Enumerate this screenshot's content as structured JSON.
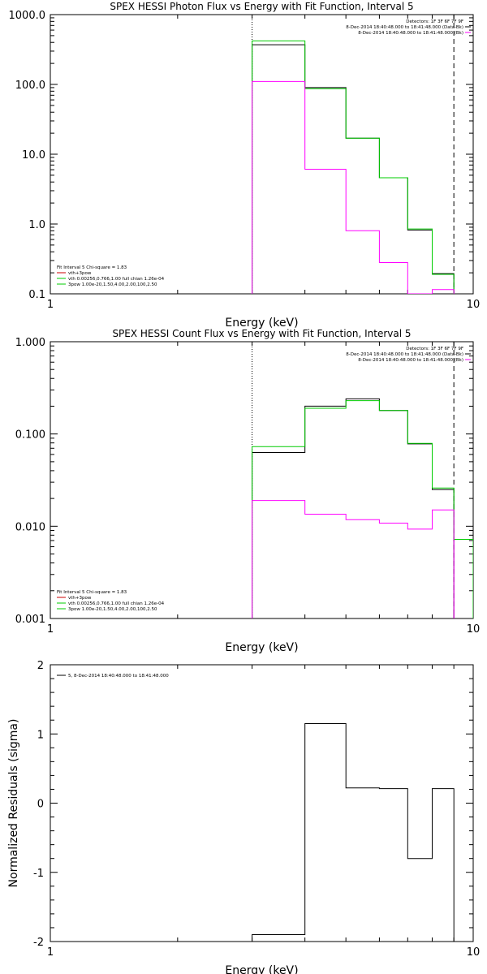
{
  "colors": {
    "data": "#000000",
    "fit": "#00cc00",
    "background": "#ff00ff"
  },
  "chart_data": [
    {
      "type": "line",
      "title": "SPEX HESSI Photon Flux vs Energy with Fit Function, Interval 5",
      "xlabel": "Energy (keV)",
      "ylabel": "",
      "xscale": "log",
      "yscale": "log",
      "xlim": [
        1,
        10
      ],
      "ylim": [
        0.1,
        1000.0
      ],
      "xticks": [
        "1",
        "10"
      ],
      "yticks": [
        "0.1",
        "1.0",
        "10.0",
        "100.0",
        "1000.0"
      ],
      "edges": [
        3.0,
        4.0,
        5.0,
        6.0,
        7.0,
        8.0,
        9.0
      ],
      "series": [
        {
          "role": "data",
          "values": [
            370,
            90,
            17.0,
            4.6,
            0.82,
            0.195
          ]
        },
        {
          "role": "fit",
          "values": [
            420,
            87,
            17.0,
            4.6,
            0.85,
            0.19
          ]
        },
        {
          "role": "background",
          "values": [
            110,
            6.1,
            0.8,
            0.28,
            0.1,
            0.115
          ]
        }
      ],
      "vlines": [
        {
          "x": 3.0,
          "style": "dotted"
        },
        {
          "x": 9.0,
          "style": "dashed"
        }
      ],
      "legend_right": [
        "Detectors: 1F 3F 6F 7F 9F",
        "8-Dec-2014 18:40:48.000 to 18:41:48.000 (Data-Bk)",
        "8-Dec-2014 18:40:48.000 to 18:41:48.000 (Bk)"
      ],
      "legend_left": [
        "Fit Interval 5   Chi-square = 1.83",
        "vth+3pow",
        "vth 0.00256,0.766,1.00  full chian 1.26e-04",
        "3pow 1.00e-20,1.50,4.00,2.00,100,2.50"
      ]
    },
    {
      "type": "line",
      "title": "SPEX HESSI Count Flux vs Energy with Fit Function, Interval 5",
      "xlabel": "Energy (keV)",
      "ylabel": "",
      "xscale": "log",
      "yscale": "log",
      "xlim": [
        1,
        10
      ],
      "ylim": [
        0.001,
        1.0
      ],
      "xticks": [
        "1",
        "10"
      ],
      "yticks": [
        "0.001",
        "0.010",
        "0.100",
        "1.000"
      ],
      "edges": [
        3.0,
        4.0,
        5.0,
        6.0,
        7.0,
        8.0,
        9.0,
        10.0
      ],
      "series": [
        {
          "role": "data",
          "values": [
            0.063,
            0.2,
            0.24,
            0.18,
            0.078,
            0.025
          ]
        },
        {
          "role": "fit",
          "values": [
            0.073,
            0.19,
            0.23,
            0.18,
            0.079,
            0.026,
            0.0072
          ]
        },
        {
          "role": "background",
          "values": [
            0.019,
            0.0135,
            0.0118,
            0.0108,
            0.0093,
            0.015
          ]
        }
      ],
      "vlines": [
        {
          "x": 3.0,
          "style": "dotted"
        },
        {
          "x": 9.0,
          "style": "dashed"
        }
      ],
      "legend_right": [
        "Detectors: 1F 3F 6F 7F 9F",
        "8-Dec-2014 18:40:48.000 to 18:41:48.000 (Data-Bk)",
        "8-Dec-2014 18:40:48.000 to 18:41:48.000 (Bk)"
      ],
      "legend_left": [
        "Fit Interval 5   Chi-square = 1.83",
        "vth+3pow",
        "vth 0.00256,0.766,1.00  full chian 1.26e-04",
        "3pow 1.00e-20,1.50,4.00,2.00,100,2.50"
      ]
    },
    {
      "type": "line",
      "title": "",
      "xlabel": "Energy (keV)",
      "ylabel": "Normalized Residuals (sigma)",
      "xscale": "log",
      "yscale": "linear",
      "xlim": [
        1,
        10
      ],
      "ylim": [
        -2,
        2
      ],
      "xticks": [
        "1",
        "10"
      ],
      "yticks": [
        "-2",
        "-1",
        "0",
        "1",
        "2"
      ],
      "edges": [
        3.0,
        4.0,
        5.0,
        6.0,
        7.0,
        8.0,
        9.0
      ],
      "series": [
        {
          "role": "data",
          "values": [
            -1.9,
            1.15,
            0.22,
            0.21,
            -0.8,
            0.21
          ]
        }
      ],
      "legend_left": [
        "5,  8-Dec-2014 18:40:48.000 to 18:41:48.000"
      ]
    }
  ]
}
